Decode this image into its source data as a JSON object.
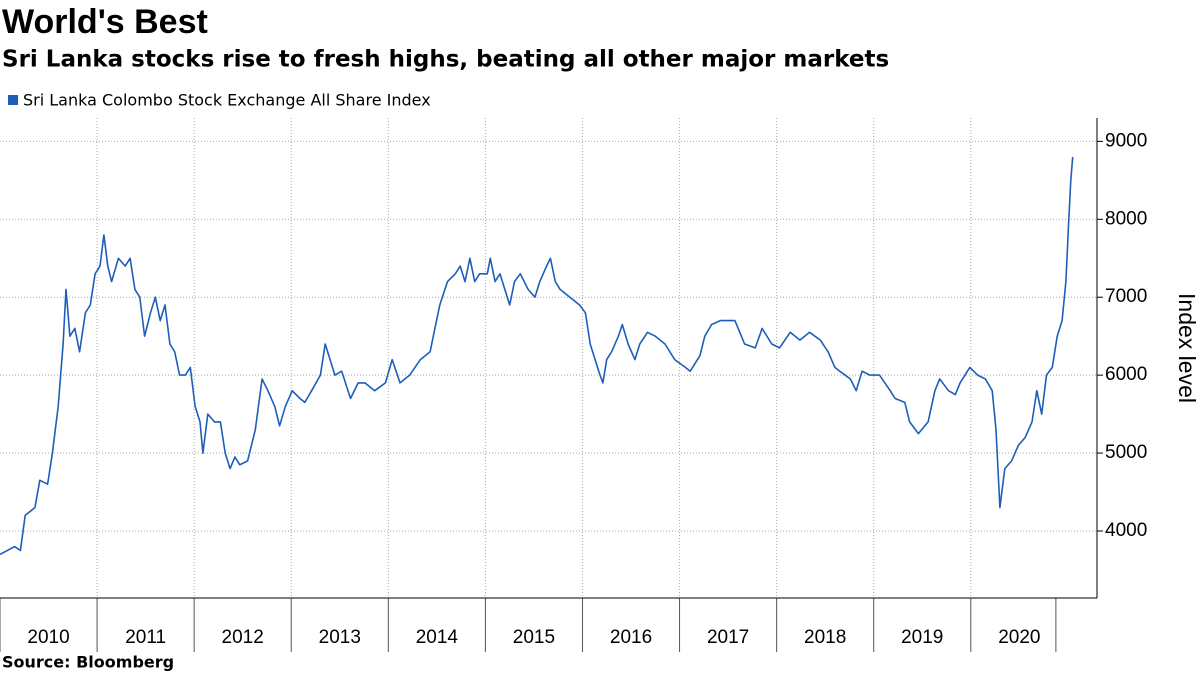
{
  "chart_data": {
    "type": "line",
    "title": "World's Best",
    "subtitle": "Sri Lanka stocks rise to fresh highs, beating all other major markets",
    "source": "Source: Bloomberg",
    "y_axis_label": "Index level",
    "x": [
      2010.0,
      2010.15,
      2010.21,
      2010.26,
      2010.36,
      2010.41,
      2010.49,
      2010.54,
      2010.6,
      2010.65,
      2010.68,
      2010.72,
      2010.77,
      2010.82,
      2010.88,
      2010.93,
      2010.98,
      2011.03,
      2011.07,
      2011.11,
      2011.15,
      2011.22,
      2011.29,
      2011.34,
      2011.39,
      2011.44,
      2011.49,
      2011.55,
      2011.6,
      2011.65,
      2011.7,
      2011.75,
      2011.8,
      2011.85,
      2011.91,
      2011.96,
      2012.01,
      2012.06,
      2012.09,
      2012.14,
      2012.21,
      2012.27,
      2012.32,
      2012.37,
      2012.42,
      2012.47,
      2012.55,
      2012.63,
      2012.7,
      2012.76,
      2012.83,
      2012.88,
      2012.94,
      2013.01,
      2013.09,
      2013.14,
      2013.21,
      2013.3,
      2013.35,
      2013.4,
      2013.45,
      2013.52,
      2013.61,
      2013.69,
      2013.76,
      2013.86,
      2013.97,
      2014.04,
      2014.12,
      2014.22,
      2014.33,
      2014.43,
      2014.48,
      2014.53,
      2014.61,
      2014.69,
      2014.74,
      2014.79,
      2014.84,
      2014.89,
      2014.94,
      2015.02,
      2015.05,
      2015.1,
      2015.15,
      2015.2,
      2015.25,
      2015.3,
      2015.36,
      2015.44,
      2015.51,
      2015.56,
      2015.63,
      2015.67,
      2015.72,
      2015.77,
      2015.87,
      2015.97,
      2016.03,
      2016.08,
      2016.13,
      2016.18,
      2016.21,
      2016.25,
      2016.3,
      2016.37,
      2016.41,
      2016.47,
      2016.54,
      2016.59,
      2016.67,
      2016.75,
      2016.85,
      2016.95,
      2017.06,
      2017.11,
      2017.21,
      2017.26,
      2017.33,
      2017.42,
      2017.57,
      2017.67,
      2017.78,
      2017.85,
      2017.95,
      2018.03,
      2018.14,
      2018.24,
      2018.34,
      2018.45,
      2018.53,
      2018.6,
      2018.65,
      2018.76,
      2018.82,
      2018.88,
      2018.96,
      2019.06,
      2019.17,
      2019.22,
      2019.32,
      2019.37,
      2019.46,
      2019.56,
      2019.63,
      2019.68,
      2019.77,
      2019.84,
      2019.89,
      2019.99,
      2020.07,
      2020.15,
      2020.22,
      2020.26,
      2020.3,
      2020.35,
      2020.42,
      2020.49,
      2020.56,
      2020.63,
      2020.68,
      2020.73,
      2020.78,
      2020.84,
      2020.89,
      2020.94,
      2020.98,
      2021.01,
      2021.03,
      2021.05
    ],
    "series": [
      {
        "name": "Sri Lanka Colombo Stock Exchange All Share Index",
        "color": "#1d5fb8",
        "values": [
          3700,
          3800,
          3750,
          4200,
          4300,
          4650,
          4600,
          5000,
          5600,
          6400,
          7100,
          6500,
          6600,
          6300,
          6800,
          6900,
          7300,
          7400,
          7800,
          7400,
          7200,
          7500,
          7400,
          7500,
          7100,
          7000,
          6500,
          6800,
          7000,
          6700,
          6900,
          6400,
          6300,
          6000,
          6000,
          6100,
          5600,
          5400,
          5000,
          5500,
          5400,
          5400,
          5000,
          4800,
          4950,
          4850,
          4900,
          5300,
          5950,
          5800,
          5600,
          5350,
          5600,
          5800,
          5700,
          5650,
          5800,
          6000,
          6400,
          6200,
          6000,
          6050,
          5700,
          5900,
          5900,
          5800,
          5900,
          6200,
          5900,
          6000,
          6200,
          6300,
          6600,
          6900,
          7200,
          7300,
          7400,
          7200,
          7500,
          7200,
          7300,
          7300,
          7500,
          7200,
          7300,
          7100,
          6900,
          7200,
          7300,
          7100,
          7000,
          7200,
          7400,
          7500,
          7200,
          7100,
          7000,
          6900,
          6800,
          6400,
          6200,
          6000,
          5900,
          6200,
          6300,
          6500,
          6650,
          6400,
          6200,
          6400,
          6550,
          6500,
          6400,
          6200,
          6100,
          6050,
          6250,
          6500,
          6650,
          6700,
          6700,
          6400,
          6350,
          6600,
          6400,
          6350,
          6550,
          6450,
          6550,
          6450,
          6300,
          6100,
          6050,
          5950,
          5800,
          6050,
          6000,
          6000,
          5800,
          5700,
          5650,
          5400,
          5250,
          5400,
          5800,
          5950,
          5800,
          5750,
          5900,
          6100,
          6000,
          5950,
          5800,
          5300,
          4300,
          4800,
          4900,
          5100,
          5200,
          5400,
          5800,
          5500,
          6000,
          6100,
          6500,
          6700,
          7200,
          8000,
          8500,
          8800
        ]
      }
    ],
    "xlim": [
      2010,
      2021.3
    ],
    "xticks": [
      2010,
      2011,
      2012,
      2013,
      2014,
      2015,
      2016,
      2017,
      2018,
      2019,
      2020
    ],
    "ylim": [
      3140,
      9300
    ],
    "yticks": [
      4000,
      5000,
      6000,
      7000,
      8000,
      9000
    ],
    "grid": true,
    "y_axis_side": "right",
    "legend": "top-left"
  }
}
